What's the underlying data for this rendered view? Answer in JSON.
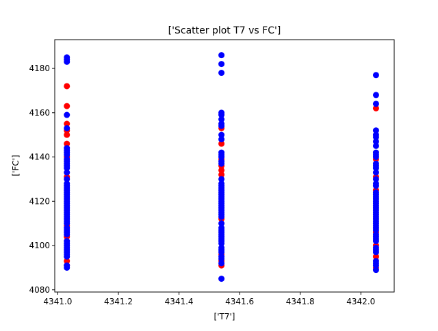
{
  "chart_data": {
    "type": "scatter",
    "title": "['Scatter plot T7 vs FC']",
    "xlabel": "['T7']",
    "ylabel": "['FC']",
    "xlim": [
      4340.99,
      4342.11
    ],
    "ylim": [
      4079,
      4193
    ],
    "xticks": [
      4341.0,
      4341.2,
      4341.4,
      4341.6,
      4341.8,
      4342.0
    ],
    "xtick_labels": [
      "4341.0",
      "4341.2",
      "4341.4",
      "4341.6",
      "4341.8",
      "4342.0"
    ],
    "yticks": [
      4080,
      4100,
      4120,
      4140,
      4160,
      4180
    ],
    "ytick_labels": [
      "4080",
      "4100",
      "4120",
      "4140",
      "4160",
      "4180"
    ],
    "grid": false,
    "series": [
      {
        "color": "#ff0000",
        "points": [
          [
            4341.03,
            4172
          ],
          [
            4341.03,
            4163
          ],
          [
            4341.03,
            4155
          ],
          [
            4341.03,
            4152
          ],
          [
            4341.03,
            4150
          ],
          [
            4341.03,
            4146
          ],
          [
            4341.03,
            4140
          ],
          [
            4341.03,
            4131
          ],
          [
            4341.03,
            4109
          ],
          [
            4341.03,
            4104
          ],
          [
            4341.03,
            4093
          ],
          [
            4341.03,
            4091
          ],
          [
            4341.54,
            4153
          ],
          [
            4341.54,
            4146
          ],
          [
            4341.54,
            4139
          ],
          [
            4341.54,
            4136
          ],
          [
            4341.54,
            4134
          ],
          [
            4341.54,
            4132
          ],
          [
            4341.54,
            4112
          ],
          [
            4341.54,
            4096
          ],
          [
            4341.54,
            4093
          ],
          [
            4341.54,
            4091
          ],
          [
            4342.05,
            4162
          ],
          [
            4342.05,
            4139
          ],
          [
            4342.05,
            4131
          ],
          [
            4342.05,
            4125
          ],
          [
            4342.05,
            4106
          ],
          [
            4342.05,
            4100
          ],
          [
            4342.05,
            4095
          ],
          [
            4342.05,
            4090
          ]
        ]
      },
      {
        "color": "#0000ff",
        "points": [
          [
            4341.03,
            4185
          ],
          [
            4341.03,
            4184
          ],
          [
            4341.03,
            4183
          ],
          [
            4341.03,
            4159
          ],
          [
            4341.03,
            4153
          ],
          [
            4341.03,
            4144
          ],
          [
            4341.03,
            4143
          ],
          [
            4341.03,
            4142
          ],
          [
            4341.03,
            4141
          ],
          [
            4341.03,
            4139
          ],
          [
            4341.03,
            4138
          ],
          [
            4341.03,
            4137
          ],
          [
            4341.03,
            4136
          ],
          [
            4341.03,
            4135
          ],
          [
            4341.03,
            4133
          ],
          [
            4341.03,
            4130
          ],
          [
            4341.03,
            4128
          ],
          [
            4341.03,
            4127
          ],
          [
            4341.03,
            4126
          ],
          [
            4341.03,
            4125
          ],
          [
            4341.03,
            4124
          ],
          [
            4341.03,
            4123
          ],
          [
            4341.03,
            4122
          ],
          [
            4341.03,
            4121
          ],
          [
            4341.03,
            4120
          ],
          [
            4341.03,
            4119
          ],
          [
            4341.03,
            4118
          ],
          [
            4341.03,
            4117
          ],
          [
            4341.03,
            4116
          ],
          [
            4341.03,
            4115
          ],
          [
            4341.03,
            4114
          ],
          [
            4341.03,
            4113
          ],
          [
            4341.03,
            4112
          ],
          [
            4341.03,
            4111
          ],
          [
            4341.03,
            4110
          ],
          [
            4341.03,
            4108
          ],
          [
            4341.03,
            4107
          ],
          [
            4341.03,
            4106
          ],
          [
            4341.03,
            4105
          ],
          [
            4341.03,
            4102
          ],
          [
            4341.03,
            4101
          ],
          [
            4341.03,
            4100
          ],
          [
            4341.03,
            4099
          ],
          [
            4341.03,
            4098
          ],
          [
            4341.03,
            4097
          ],
          [
            4341.03,
            4096
          ],
          [
            4341.03,
            4095
          ],
          [
            4341.03,
            4091
          ],
          [
            4341.03,
            4090
          ],
          [
            4341.54,
            4186
          ],
          [
            4341.54,
            4182
          ],
          [
            4341.54,
            4178
          ],
          [
            4341.54,
            4160
          ],
          [
            4341.54,
            4159
          ],
          [
            4341.54,
            4157
          ],
          [
            4341.54,
            4155
          ],
          [
            4341.54,
            4154
          ],
          [
            4341.54,
            4150
          ],
          [
            4341.54,
            4148
          ],
          [
            4341.54,
            4142
          ],
          [
            4341.54,
            4141
          ],
          [
            4341.54,
            4140
          ],
          [
            4341.54,
            4138
          ],
          [
            4341.54,
            4137
          ],
          [
            4341.54,
            4130
          ],
          [
            4341.54,
            4128
          ],
          [
            4341.54,
            4127
          ],
          [
            4341.54,
            4126
          ],
          [
            4341.54,
            4125
          ],
          [
            4341.54,
            4124
          ],
          [
            4341.54,
            4123
          ],
          [
            4341.54,
            4122
          ],
          [
            4341.54,
            4121
          ],
          [
            4341.54,
            4120
          ],
          [
            4341.54,
            4119
          ],
          [
            4341.54,
            4118
          ],
          [
            4341.54,
            4117
          ],
          [
            4341.54,
            4116
          ],
          [
            4341.54,
            4115
          ],
          [
            4341.54,
            4114
          ],
          [
            4341.54,
            4113
          ],
          [
            4341.54,
            4110
          ],
          [
            4341.54,
            4108
          ],
          [
            4341.54,
            4107
          ],
          [
            4341.54,
            4106
          ],
          [
            4341.54,
            4105
          ],
          [
            4341.54,
            4104
          ],
          [
            4341.54,
            4103
          ],
          [
            4341.54,
            4102
          ],
          [
            4341.54,
            4101
          ],
          [
            4341.54,
            4099
          ],
          [
            4341.54,
            4098
          ],
          [
            4341.54,
            4097
          ],
          [
            4341.54,
            4095
          ],
          [
            4341.54,
            4094
          ],
          [
            4341.54,
            4092
          ],
          [
            4341.54,
            4085
          ],
          [
            4342.05,
            4177
          ],
          [
            4342.05,
            4168
          ],
          [
            4342.05,
            4164
          ],
          [
            4342.05,
            4152
          ],
          [
            4342.05,
            4150
          ],
          [
            4342.05,
            4149
          ],
          [
            4342.05,
            4147
          ],
          [
            4342.05,
            4145
          ],
          [
            4342.05,
            4142
          ],
          [
            4342.05,
            4141
          ],
          [
            4342.05,
            4140
          ],
          [
            4342.05,
            4137
          ],
          [
            4342.05,
            4136
          ],
          [
            4342.05,
            4135
          ],
          [
            4342.05,
            4133
          ],
          [
            4342.05,
            4130
          ],
          [
            4342.05,
            4128
          ],
          [
            4342.05,
            4127
          ],
          [
            4342.05,
            4124
          ],
          [
            4342.05,
            4123
          ],
          [
            4342.05,
            4122
          ],
          [
            4342.05,
            4121
          ],
          [
            4342.05,
            4120
          ],
          [
            4342.05,
            4119
          ],
          [
            4342.05,
            4118
          ],
          [
            4342.05,
            4117
          ],
          [
            4342.05,
            4116
          ],
          [
            4342.05,
            4115
          ],
          [
            4342.05,
            4114
          ],
          [
            4342.05,
            4113
          ],
          [
            4342.05,
            4112
          ],
          [
            4342.05,
            4111
          ],
          [
            4342.05,
            4110
          ],
          [
            4342.05,
            4109
          ],
          [
            4342.05,
            4108
          ],
          [
            4342.05,
            4107
          ],
          [
            4342.05,
            4105
          ],
          [
            4342.05,
            4104
          ],
          [
            4342.05,
            4103
          ],
          [
            4342.05,
            4102
          ],
          [
            4342.05,
            4099
          ],
          [
            4342.05,
            4098
          ],
          [
            4342.05,
            4097
          ],
          [
            4342.05,
            4093
          ],
          [
            4342.05,
            4092
          ],
          [
            4342.05,
            4091
          ],
          [
            4342.05,
            4089
          ]
        ]
      }
    ]
  }
}
